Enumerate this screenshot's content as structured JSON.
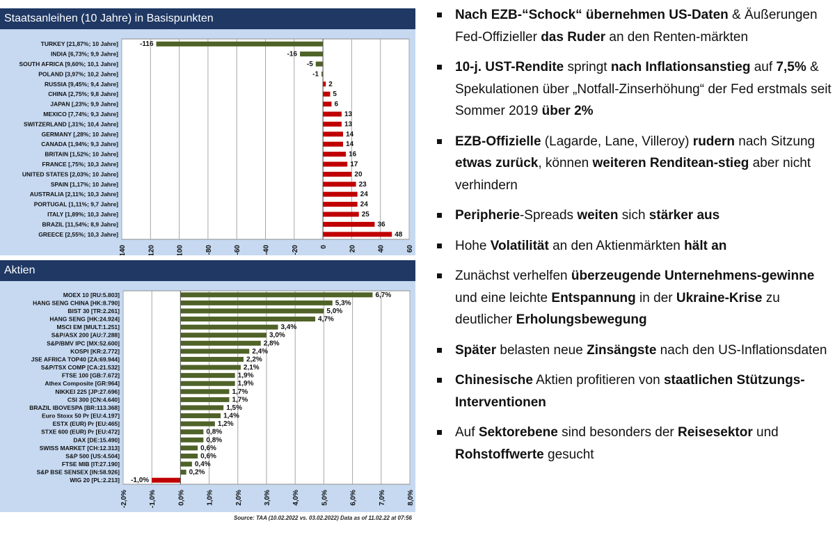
{
  "bonds_header": "Staatsanleihen (10 Jahre) in Basispunkten",
  "stocks_header": "Aktien",
  "source": "Source: TAA (10.02.2022  vs. 03.02.2022) Data as of 11.02.22 at 07:56",
  "colors": {
    "header": "#1f3864",
    "chart_bg": "#c6d9f1",
    "positive_green": "#4f6228",
    "bond_red": "#c00000",
    "stock_negative_red": "#c00000"
  },
  "chart_data": [
    {
      "type": "bar",
      "orientation": "horizontal",
      "title": "Staatsanleihen (10 Jahre) in Basispunkten",
      "categories": [
        "TURKEY [21,87%; 10 Jahre]",
        "INDIA [6,73%; 9,9 Jahre]",
        "SOUTH AFRICA [9,60%; 10,1 Jahre]",
        "POLAND [3,97%; 10,2 Jahre]",
        "RUSSIA [9,45%; 9,4 Jahre]",
        "CHINA [2,75%; 9,8 Jahre]",
        "JAPAN [,23%; 9,9 Jahre]",
        "MEXICO [7,74%; 9,3 Jahre]",
        "SWITZERLAND [,31%; 10,4 Jahre]",
        "GERMANY [,28%; 10 Jahre]",
        "CANADA [1,94%; 9,3 Jahre]",
        "BRITAIN [1,52%; 10 Jahre]",
        "FRANCE [,75%; 10,3 Jahre]",
        "UNITED STATES [2,03%; 10 Jahre]",
        "SPAIN [1,17%; 10 Jahre]",
        "AUSTRALIA [2,11%; 10,3 Jahre]",
        "PORTUGAL [1,11%; 9,7 Jahre]",
        "ITALY [1,89%; 10,3 Jahre]",
        "BRAZIL [11,54%; 8,9 Jahre]",
        "GREECE [2,55%; 10,3 Jahre]"
      ],
      "values": [
        -116,
        -16,
        -5,
        -1,
        2,
        5,
        6,
        13,
        13,
        14,
        14,
        16,
        17,
        20,
        23,
        24,
        24,
        25,
        36,
        48
      ],
      "value_labels": [
        "-116",
        "-16",
        "-5",
        "-1",
        "2",
        "5",
        "6",
        "13",
        "13",
        "14",
        "14",
        "16",
        "17",
        "20",
        "23",
        "24",
        "24",
        "25",
        "36",
        "48"
      ],
      "xlim": [
        -140,
        60
      ],
      "ticks": [
        -140,
        -120,
        -100,
        -80,
        -60,
        -40,
        -20,
        0,
        20,
        40,
        60
      ],
      "tick_labels": [
        "-140",
        "-120",
        "-100",
        "-80",
        "-60",
        "-40",
        "-20",
        "0",
        "20",
        "40",
        "60"
      ],
      "grid": true,
      "negative_color": "#4f6228",
      "positive_color": "#c00000"
    },
    {
      "type": "bar",
      "orientation": "horizontal",
      "title": "Aktien",
      "categories": [
        "MOEX 10  [RU:5.803]",
        "HANG SENG CHINA [HK:8.790]",
        "BIST 30  [TR:2.261]",
        "HANG SENG [HK:24.924]",
        "MSCI EM [MULT:1.251]",
        "S&P/ASX 200 [AU:7.288]",
        "S&P/BMV IPC [MX:52.600]",
        "KOSPI [KR:2.772]",
        "JSE AFRICA TOP40 [ZA:69.944]",
        "S&P/TSX COMP [CA:21.532]",
        "FTSE 100 [GB:7.672]",
        "Athex Composite  [GR:964]",
        "NIKKEI 225 [JP:27.696]",
        "CSI 300 [CN:4.640]",
        "BRAZIL IBOVESPA [BR:113.368]",
        "Euro Stoxx 50 Pr [EU:4.197]",
        "ESTX (EUR) Pr [EU:465]",
        "STXE 600 (EUR) Pr [EU:472]",
        "DAX [DE:15.490]",
        "SWISS MARKET [CH:12.313]",
        "S&P 500 [US:4.504]",
        "FTSE MIB [IT:27.190]",
        "S&P BSE SENSEX [IN:58.926]",
        "WIG 20 [PL:2.213]"
      ],
      "values": [
        6.7,
        5.3,
        5.0,
        4.7,
        3.4,
        3.0,
        2.8,
        2.4,
        2.2,
        2.1,
        1.9,
        1.9,
        1.7,
        1.7,
        1.5,
        1.4,
        1.2,
        0.8,
        0.8,
        0.6,
        0.6,
        0.4,
        0.2,
        -1.0
      ],
      "value_labels": [
        "6,7%",
        "5,3%",
        "5,0%",
        "4,7%",
        "3,4%",
        "3,0%",
        "2,8%",
        "2,4%",
        "2,2%",
        "2,1%",
        "1,9%",
        "1,9%",
        "1,7%",
        "1,7%",
        "1,5%",
        "1,4%",
        "1,2%",
        "0,8%",
        "0,8%",
        "0,6%",
        "0,6%",
        "0,4%",
        "0,2%",
        "-1,0%"
      ],
      "xlim": [
        -2.0,
        8.0
      ],
      "ticks": [
        -2,
        -1,
        0,
        1,
        2,
        3,
        4,
        5,
        6,
        7,
        8
      ],
      "tick_labels": [
        "-2,0%",
        "-1,0%",
        "0,0%",
        "1,0%",
        "2,0%",
        "3,0%",
        "4,0%",
        "5,0%",
        "6,0%",
        "7,0%",
        "8,0%"
      ],
      "grid": true,
      "negative_color": "#c00000",
      "positive_color": "#4f6228"
    }
  ],
  "bullets": [
    [
      {
        "t": "Nach EZB-“Schock“ übernehmen US-Daten",
        "b": true
      },
      {
        "t": " & Äußerungen Fed-Offizieller ",
        "b": false
      },
      {
        "t": "das Ruder",
        "b": true
      },
      {
        "t": " an den Renten-märkten",
        "b": false
      }
    ],
    [
      {
        "t": "10-j. UST-Rendite",
        "b": true
      },
      {
        "t": " springt ",
        "b": false
      },
      {
        "t": "nach Inflationsanstieg",
        "b": true
      },
      {
        "t": " auf ",
        "b": false
      },
      {
        "t": "7,5%",
        "b": true
      },
      {
        "t": " & Spekulationen über „Notfall-Zinserhöhung“ der Fed erstmals seit Sommer 2019 ",
        "b": false
      },
      {
        "t": "über 2%",
        "b": true
      }
    ],
    [
      {
        "t": "EZB-Offizielle",
        "b": true
      },
      {
        "t": " (Lagarde, Lane, Villeroy) ",
        "b": false
      },
      {
        "t": "rudern",
        "b": true
      },
      {
        "t": " nach Sitzung ",
        "b": false
      },
      {
        "t": "etwas zurück",
        "b": true
      },
      {
        "t": ", können ",
        "b": false
      },
      {
        "t": "weiteren Renditean-stieg",
        "b": true
      },
      {
        "t": " aber nicht verhindern",
        "b": false
      }
    ],
    [
      {
        "t": "Peripherie",
        "b": true
      },
      {
        "t": "-Spreads ",
        "b": false
      },
      {
        "t": "weiten",
        "b": true
      },
      {
        "t": " sich ",
        "b": false
      },
      {
        "t": "stärker aus",
        "b": true
      }
    ],
    [
      {
        "t": "Hohe ",
        "b": false
      },
      {
        "t": "Volatilität",
        "b": true
      },
      {
        "t": " an den Aktienmärkten ",
        "b": false
      },
      {
        "t": "hält an",
        "b": true
      }
    ],
    [
      {
        "t": "Zunächst verhelfen ",
        "b": false
      },
      {
        "t": "überzeugende Unternehmens-gewinne",
        "b": true
      },
      {
        "t": " und eine leichte ",
        "b": false
      },
      {
        "t": "Entspannung",
        "b": true
      },
      {
        "t": " in der ",
        "b": false
      },
      {
        "t": "Ukraine-Krise",
        "b": true
      },
      {
        "t": " zu deutlicher ",
        "b": false
      },
      {
        "t": "Erholungsbewegung",
        "b": true
      }
    ],
    [
      {
        "t": "Später",
        "b": true
      },
      {
        "t": " belasten neue ",
        "b": false
      },
      {
        "t": "Zinsängste",
        "b": true
      },
      {
        "t": " nach den US-Inflationsdaten",
        "b": false
      }
    ],
    [
      {
        "t": "Chinesische",
        "b": true
      },
      {
        "t": " Aktien profitieren von ",
        "b": false
      },
      {
        "t": "staatlichen Stützungs-Interventionen",
        "b": true
      }
    ],
    [
      {
        "t": "Auf ",
        "b": false
      },
      {
        "t": "Sektorebene",
        "b": true
      },
      {
        "t": " sind besonders der ",
        "b": false
      },
      {
        "t": "Reisesektor",
        "b": true
      },
      {
        "t": " und ",
        "b": false
      },
      {
        "t": "Rohstoffwerte",
        "b": true
      },
      {
        "t": " gesucht",
        "b": false
      }
    ]
  ]
}
